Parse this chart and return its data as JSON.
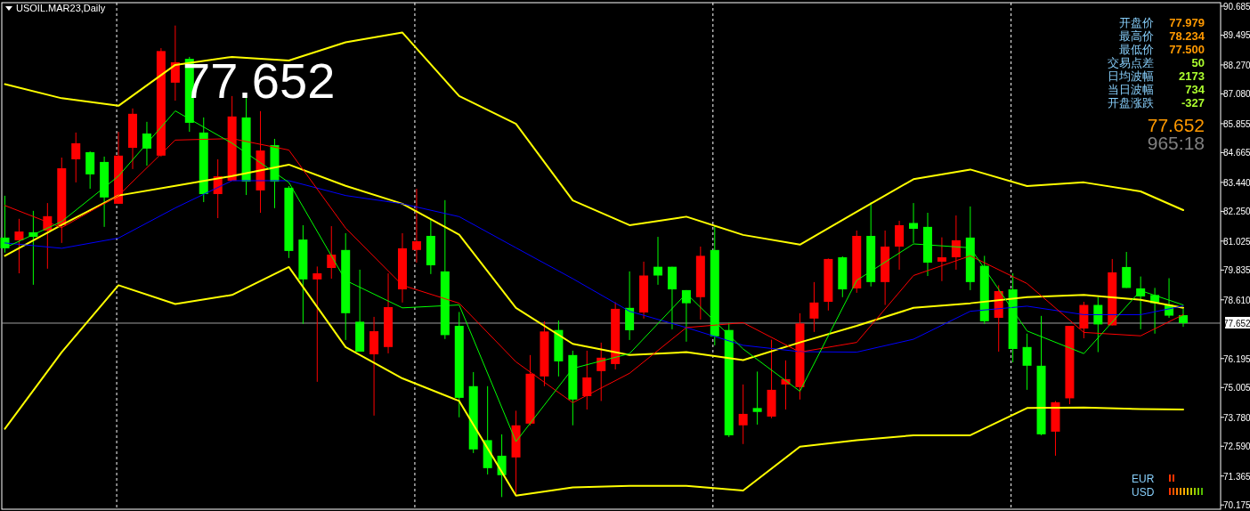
{
  "chart_data": {
    "type": "candlestick",
    "title": "USOIL.MAR23,Daily",
    "categories": [
      null,
      null,
      null,
      null,
      null,
      null,
      null,
      null,
      null,
      null,
      null,
      null,
      null,
      null,
      null,
      null,
      null,
      null,
      null,
      null,
      null,
      null,
      null,
      null,
      null,
      null,
      null,
      null,
      null,
      null,
      null,
      null,
      null,
      null,
      null,
      null,
      null,
      null,
      null,
      null,
      null,
      null,
      null,
      null,
      null,
      null,
      null,
      null,
      null,
      null,
      null,
      null,
      null,
      null,
      null,
      null,
      null,
      null,
      null,
      null,
      null,
      null,
      null,
      null,
      null,
      null,
      null,
      null,
      null,
      null,
      null,
      null,
      null,
      null,
      null,
      null,
      null,
      null,
      null,
      null,
      null,
      null,
      null,
      null
    ],
    "ohlc": [
      [
        81.17,
        82.89,
        80.55,
        80.73
      ],
      [
        81.06,
        81.94,
        79.7,
        81.42
      ],
      [
        81.39,
        82.27,
        79.23,
        81.2
      ],
      [
        81.46,
        82.59,
        79.89,
        82.05
      ],
      [
        81.68,
        84.46,
        80.95,
        84.02
      ],
      [
        84.39,
        85.49,
        83.44,
        85.05
      ],
      [
        84.68,
        84.72,
        83.18,
        83.77
      ],
      [
        84.28,
        84.5,
        81.61,
        82.82
      ],
      [
        82.56,
        85.52,
        82.56,
        84.54
      ],
      [
        84.86,
        86.48,
        83.99,
        86.26
      ],
      [
        85.45,
        85.93,
        84.13,
        84.83
      ],
      [
        84.54,
        88.96,
        84.5,
        88.84
      ],
      [
        87.54,
        89.89,
        86.8,
        88.38
      ],
      [
        88.52,
        88.6,
        85.52,
        85.89
      ],
      [
        85.49,
        86.11,
        82.63,
        82.96
      ],
      [
        82.96,
        84.39,
        81.97,
        83.69
      ],
      [
        83.51,
        86.99,
        83.51,
        86.15
      ],
      [
        86.11,
        86.91,
        82.92,
        83.47
      ],
      [
        83.11,
        86.37,
        82.19,
        84.75
      ],
      [
        84.97,
        85.23,
        82.38,
        83.47
      ],
      [
        83.22,
        83.29,
        80.33,
        80.62
      ],
      [
        81.09,
        81.68,
        77.62,
        79.45
      ],
      [
        79.45,
        79.98,
        75.24,
        79.7
      ],
      [
        79.92,
        81.64,
        79.48,
        80.47
      ],
      [
        80.66,
        81.35,
        76.96,
        78.06
      ],
      [
        77.71,
        79.85,
        76.48,
        76.48
      ],
      [
        76.37,
        77.91,
        73.85,
        77.32
      ],
      [
        76.67,
        79.7,
        76.41,
        78.31
      ],
      [
        79.04,
        81.35,
        78.5,
        80.73
      ],
      [
        80.66,
        83.18,
        80.14,
        81.02
      ],
      [
        81.24,
        81.9,
        79.67,
        80.03
      ],
      [
        79.78,
        82.71,
        77.0,
        77.16
      ],
      [
        77.54,
        78.11,
        73.78,
        74.58
      ],
      [
        75.06,
        75.64,
        72.31,
        72.46
      ],
      [
        72.84,
        75.06,
        71.43,
        71.69
      ],
      [
        72.2,
        73.08,
        70.5,
        71.4
      ],
      [
        72.13,
        74.05,
        70.63,
        73.45
      ],
      [
        73.52,
        76.34,
        73.45,
        75.57
      ],
      [
        75.46,
        77.73,
        75.06,
        77.31
      ],
      [
        77.37,
        77.76,
        75.46,
        76.08
      ],
      [
        76.34,
        76.52,
        73.45,
        74.51
      ],
      [
        74.65,
        76.52,
        74.1,
        75.42
      ],
      [
        75.68,
        76.85,
        74.45,
        76.23
      ],
      [
        75.97,
        78.51,
        75.75,
        78.24
      ],
      [
        78.28,
        79.78,
        76.96,
        77.36
      ],
      [
        78.09,
        80.18,
        77.84,
        79.61
      ],
      [
        79.97,
        81.2,
        79.23,
        79.61
      ],
      [
        79.97,
        79.97,
        77.4,
        79.04
      ],
      [
        79.01,
        79.01,
        76.89,
        78.47
      ],
      [
        78.72,
        80.8,
        77.8,
        80.42
      ],
      [
        80.66,
        81.64,
        76.74,
        77.11
      ],
      [
        77.37,
        77.67,
        72.97,
        73.04
      ],
      [
        73.45,
        75.13,
        72.68,
        73.92
      ],
      [
        74.16,
        75.66,
        73.48,
        74.0
      ],
      [
        73.81,
        76.97,
        73.74,
        74.91
      ],
      [
        75.13,
        76.12,
        74.1,
        75.35
      ],
      [
        75.02,
        78.06,
        74.51,
        77.64
      ],
      [
        77.84,
        79.34,
        77.29,
        78.5
      ],
      [
        78.53,
        80.31,
        78.17,
        80.29
      ],
      [
        80.36,
        80.4,
        78.72,
        79.04
      ],
      [
        79.08,
        81.46,
        78.9,
        81.24
      ],
      [
        81.24,
        82.63,
        79.16,
        79.34
      ],
      [
        79.34,
        81.46,
        78.4,
        80.8
      ],
      [
        80.8,
        81.86,
        79.85,
        81.68
      ],
      [
        81.77,
        82.59,
        80.95,
        81.53
      ],
      [
        81.61,
        82.19,
        79.59,
        80.14
      ],
      [
        80.18,
        81.18,
        79.38,
        80.36
      ],
      [
        80.36,
        82.08,
        79.85,
        81.06
      ],
      [
        81.17,
        82.45,
        79.01,
        79.34
      ],
      [
        80.01,
        80.42,
        77.62,
        77.73
      ],
      [
        77.87,
        79.21,
        76.48,
        78.97
      ],
      [
        79.04,
        79.7,
        76.04,
        76.59
      ],
      [
        76.67,
        77.22,
        74.91,
        75.9
      ],
      [
        75.9,
        77.95,
        73.04,
        73.08
      ],
      [
        73.19,
        74.45,
        72.2,
        74.4
      ],
      [
        74.56,
        77.54,
        74.32,
        77.54
      ],
      [
        77.43,
        78.53,
        77.03,
        78.4
      ],
      [
        78.4,
        78.72,
        76.46,
        77.6
      ],
      [
        77.56,
        80.29,
        77.56,
        79.74
      ],
      [
        79.96,
        80.58,
        79.1,
        79.1
      ],
      [
        79.08,
        79.57,
        77.4,
        78.75
      ],
      [
        78.81,
        79.1,
        77.22,
        78.47
      ],
      [
        78.4,
        79.5,
        77.87,
        77.96
      ],
      [
        77.979,
        78.234,
        77.5,
        77.652
      ]
    ],
    "colors": [
      "#00ff00",
      "#ff0000",
      "#00ff00",
      "#ff0000",
      "#ff0000",
      "#ff0000",
      "#00ff00",
      "#00ff00",
      "#ff0000",
      "#ff0000",
      "#00ff00",
      "#ff0000",
      "#ff0000",
      "#00ff00",
      "#00ff00",
      "#ff0000",
      "#ff0000",
      "#00ff00",
      "#ff0000",
      "#00ff00",
      "#00ff00",
      "#00ff00",
      "#ff0000",
      "#ff0000",
      "#00ff00",
      "#00ff00",
      "#ff0000",
      "#ff0000",
      "#ff0000",
      "#ff0000",
      "#00ff00",
      "#00ff00",
      "#00ff00",
      "#00ff00",
      "#00ff00",
      "#00ff00",
      "#ff0000",
      "#ff0000",
      "#ff0000",
      "#00ff00",
      "#00ff00",
      "#ff0000",
      "#ff0000",
      "#ff0000",
      "#00ff00",
      "#ff0000",
      "#00ff00",
      "#00ff00",
      "#00ff00",
      "#ff0000",
      "#00ff00",
      "#00ff00",
      "#ff0000",
      "#00ff00",
      "#ff0000",
      "#ff0000",
      "#ff0000",
      "#ff0000",
      "#ff0000",
      "#00ff00",
      "#ff0000",
      "#00ff00",
      "#ff0000",
      "#ff0000",
      "#00ff00",
      "#00ff00",
      "#ff0000",
      "#ff0000",
      "#00ff00",
      "#00ff00",
      "#ff0000",
      "#00ff00",
      "#00ff00",
      "#00ff00",
      "#ff0000",
      "#ff0000",
      "#ff0000",
      "#00ff00",
      "#ff0000",
      "#00ff00",
      "#00ff00",
      "#00ff00",
      "#00ff00",
      "#00ff00"
    ],
    "series": [
      {
        "type": "line",
        "color": "#ffff00",
        "values": [
          87.48,
          null,
          null,
          null,
          86.9,
          null,
          null,
          null,
          86.59,
          null,
          null,
          null,
          88.27,
          null,
          null,
          null,
          88.6,
          null,
          null,
          null,
          88.45,
          null,
          null,
          null,
          89.2,
          null,
          null,
          null,
          89.6,
          null,
          null,
          null,
          86.99,
          null,
          null,
          null,
          85.85,
          null,
          null,
          null,
          82.7,
          null,
          null,
          null,
          81.68,
          null,
          null,
          null,
          82.03,
          null,
          null,
          null,
          81.28,
          null,
          null,
          null,
          80.88,
          null,
          null,
          null,
          82.23,
          null,
          null,
          null,
          83.57,
          null,
          null,
          null,
          83.97,
          null,
          null,
          null,
          83.29,
          null,
          null,
          null,
          83.44,
          null,
          null,
          null,
          83.07,
          null,
          null,
          82.3
        ]
      },
      {
        "type": "line",
        "color": "#ffff00",
        "values": [
          80.42,
          null,
          null,
          null,
          81.69,
          null,
          null,
          null,
          82.9,
          null,
          null,
          null,
          83.3,
          null,
          null,
          null,
          83.7,
          null,
          null,
          null,
          84.17,
          null,
          null,
          null,
          83.3,
          null,
          null,
          null,
          82.56,
          null,
          null,
          null,
          81.29,
          null,
          null,
          null,
          78.28,
          null,
          null,
          null,
          76.8,
          null,
          null,
          null,
          76.34,
          null,
          null,
          null,
          76.46,
          null,
          null,
          null,
          76.13,
          null,
          null,
          null,
          76.86,
          null,
          null,
          null,
          77.54,
          null,
          null,
          null,
          78.28,
          null,
          null,
          null,
          78.47,
          null,
          null,
          null,
          78.72,
          null,
          null,
          null,
          78.81,
          null,
          null,
          null,
          78.61,
          null,
          null,
          78.28
        ]
      },
      {
        "type": "line",
        "color": "#ffff00",
        "values": [
          73.31,
          null,
          null,
          null,
          76.46,
          null,
          null,
          null,
          79.21,
          null,
          null,
          null,
          78.44,
          null,
          null,
          null,
          78.81,
          null,
          null,
          null,
          79.96,
          null,
          null,
          null,
          76.67,
          null,
          null,
          null,
          75.38,
          null,
          null,
          null,
          74.45,
          null,
          null,
          null,
          70.56,
          null,
          null,
          null,
          70.9,
          null,
          null,
          null,
          70.96,
          null,
          null,
          null,
          70.96,
          null,
          null,
          null,
          70.77,
          null,
          null,
          null,
          72.57,
          null,
          null,
          null,
          72.84,
          null,
          null,
          null,
          73.04,
          null,
          null,
          null,
          73.04,
          null,
          null,
          null,
          74.16,
          null,
          null,
          null,
          74.18,
          null,
          null,
          null,
          74.12,
          null,
          null,
          74.1
        ]
      },
      {
        "type": "line",
        "color": "#0000ff",
        "values": [
          80.95,
          null,
          null,
          null,
          80.73,
          null,
          null,
          null,
          81.15,
          null,
          null,
          null,
          82.39,
          null,
          null,
          null,
          83.51,
          null,
          null,
          null,
          83.51,
          null,
          null,
          null,
          82.9,
          null,
          null,
          null,
          82.56,
          null,
          null,
          null,
          82.03,
          null,
          null,
          null,
          80.75,
          null,
          null,
          null,
          79.48,
          null,
          null,
          null,
          78.14,
          null,
          null,
          null,
          77.47,
          null,
          null,
          null,
          76.74,
          null,
          null,
          null,
          76.48,
          null,
          null,
          null,
          76.46,
          null,
          null,
          null,
          76.99,
          null,
          null,
          null,
          78.14,
          null,
          null,
          null,
          78.35,
          null,
          null,
          null,
          78.0,
          null,
          null,
          null,
          78.0,
          null,
          null,
          78.36
        ]
      },
      {
        "type": "line",
        "color": "#ff0000",
        "values": [
          82.49,
          null,
          null,
          null,
          81.58,
          null,
          null,
          null,
          82.9,
          null,
          null,
          null,
          85.18,
          null,
          null,
          null,
          85.24,
          null,
          null,
          null,
          84.77,
          null,
          null,
          null,
          81.56,
          null,
          null,
          null,
          79.21,
          null,
          null,
          null,
          78.47,
          null,
          null,
          null,
          76.06,
          null,
          null,
          null,
          74.38,
          null,
          null,
          null,
          75.59,
          null,
          null,
          null,
          77.47,
          null,
          null,
          null,
          77.67,
          null,
          null,
          null,
          76.46,
          null,
          null,
          null,
          76.86,
          null,
          null,
          null,
          79.61,
          null,
          null,
          null,
          80.42,
          null,
          null,
          null,
          79.28,
          null,
          null,
          null,
          77.27,
          null,
          null,
          null,
          77.13,
          null,
          null,
          78.0
        ]
      },
      {
        "type": "line",
        "color": "#00ff00",
        "values": [
          80.75,
          null,
          null,
          null,
          81.83,
          null,
          null,
          null,
          83.7,
          null,
          null,
          null,
          86.38,
          null,
          null,
          null,
          85.05,
          null,
          null,
          null,
          83.44,
          null,
          null,
          null,
          79.41,
          null,
          null,
          null,
          78.28,
          null,
          null,
          null,
          78.4,
          null,
          null,
          null,
          72.78,
          null,
          null,
          null,
          75.79,
          null,
          null,
          null,
          76.4,
          null,
          null,
          null,
          78.87,
          null,
          null,
          null,
          76.59,
          null,
          null,
          null,
          74.85,
          null,
          null,
          null,
          79.41,
          null,
          null,
          null,
          80.91,
          null,
          null,
          null,
          80.75,
          null,
          null,
          null,
          77.33,
          null,
          null,
          null,
          76.4,
          null,
          null,
          null,
          78.99,
          null,
          null,
          78.4
        ]
      }
    ],
    "grid": "x",
    "ylim": [
      70.0,
      90.83
    ],
    "yticks": [
      90.685,
      89.495,
      {
        "value": 88.27,
        "label": "88.270"
      },
      {
        "value": 87.08,
        "label": "87.080"
      },
      85.855,
      84.665,
      {
        "value": 83.44,
        "label": "83.440"
      },
      {
        "value": 82.25,
        "label": "82.250"
      },
      81.025,
      79.835,
      {
        "value": 78.61,
        "label": "78.610"
      },
      76.195,
      75.005,
      {
        "value": 73.78,
        "label": "73.780"
      },
      {
        "value": 72.59,
        "label": "72.590"
      },
      71.365,
      70.175
    ],
    "ref_lines": [
      {
        "axis": "y",
        "value": 77.652,
        "label": "77.652",
        "color": "#a0a0a0"
      }
    ],
    "annotations": [
      "77.652",
      "开盘价",
      "77.979",
      "最高价",
      "78.234",
      "最低价",
      "77.500",
      "交易点差",
      "50",
      "日均波幅",
      "2173",
      "当日波幅",
      "734",
      "开盘涨跌",
      "-327",
      "77.652",
      "965:18",
      "EUR",
      "USD"
    ]
  }
}
